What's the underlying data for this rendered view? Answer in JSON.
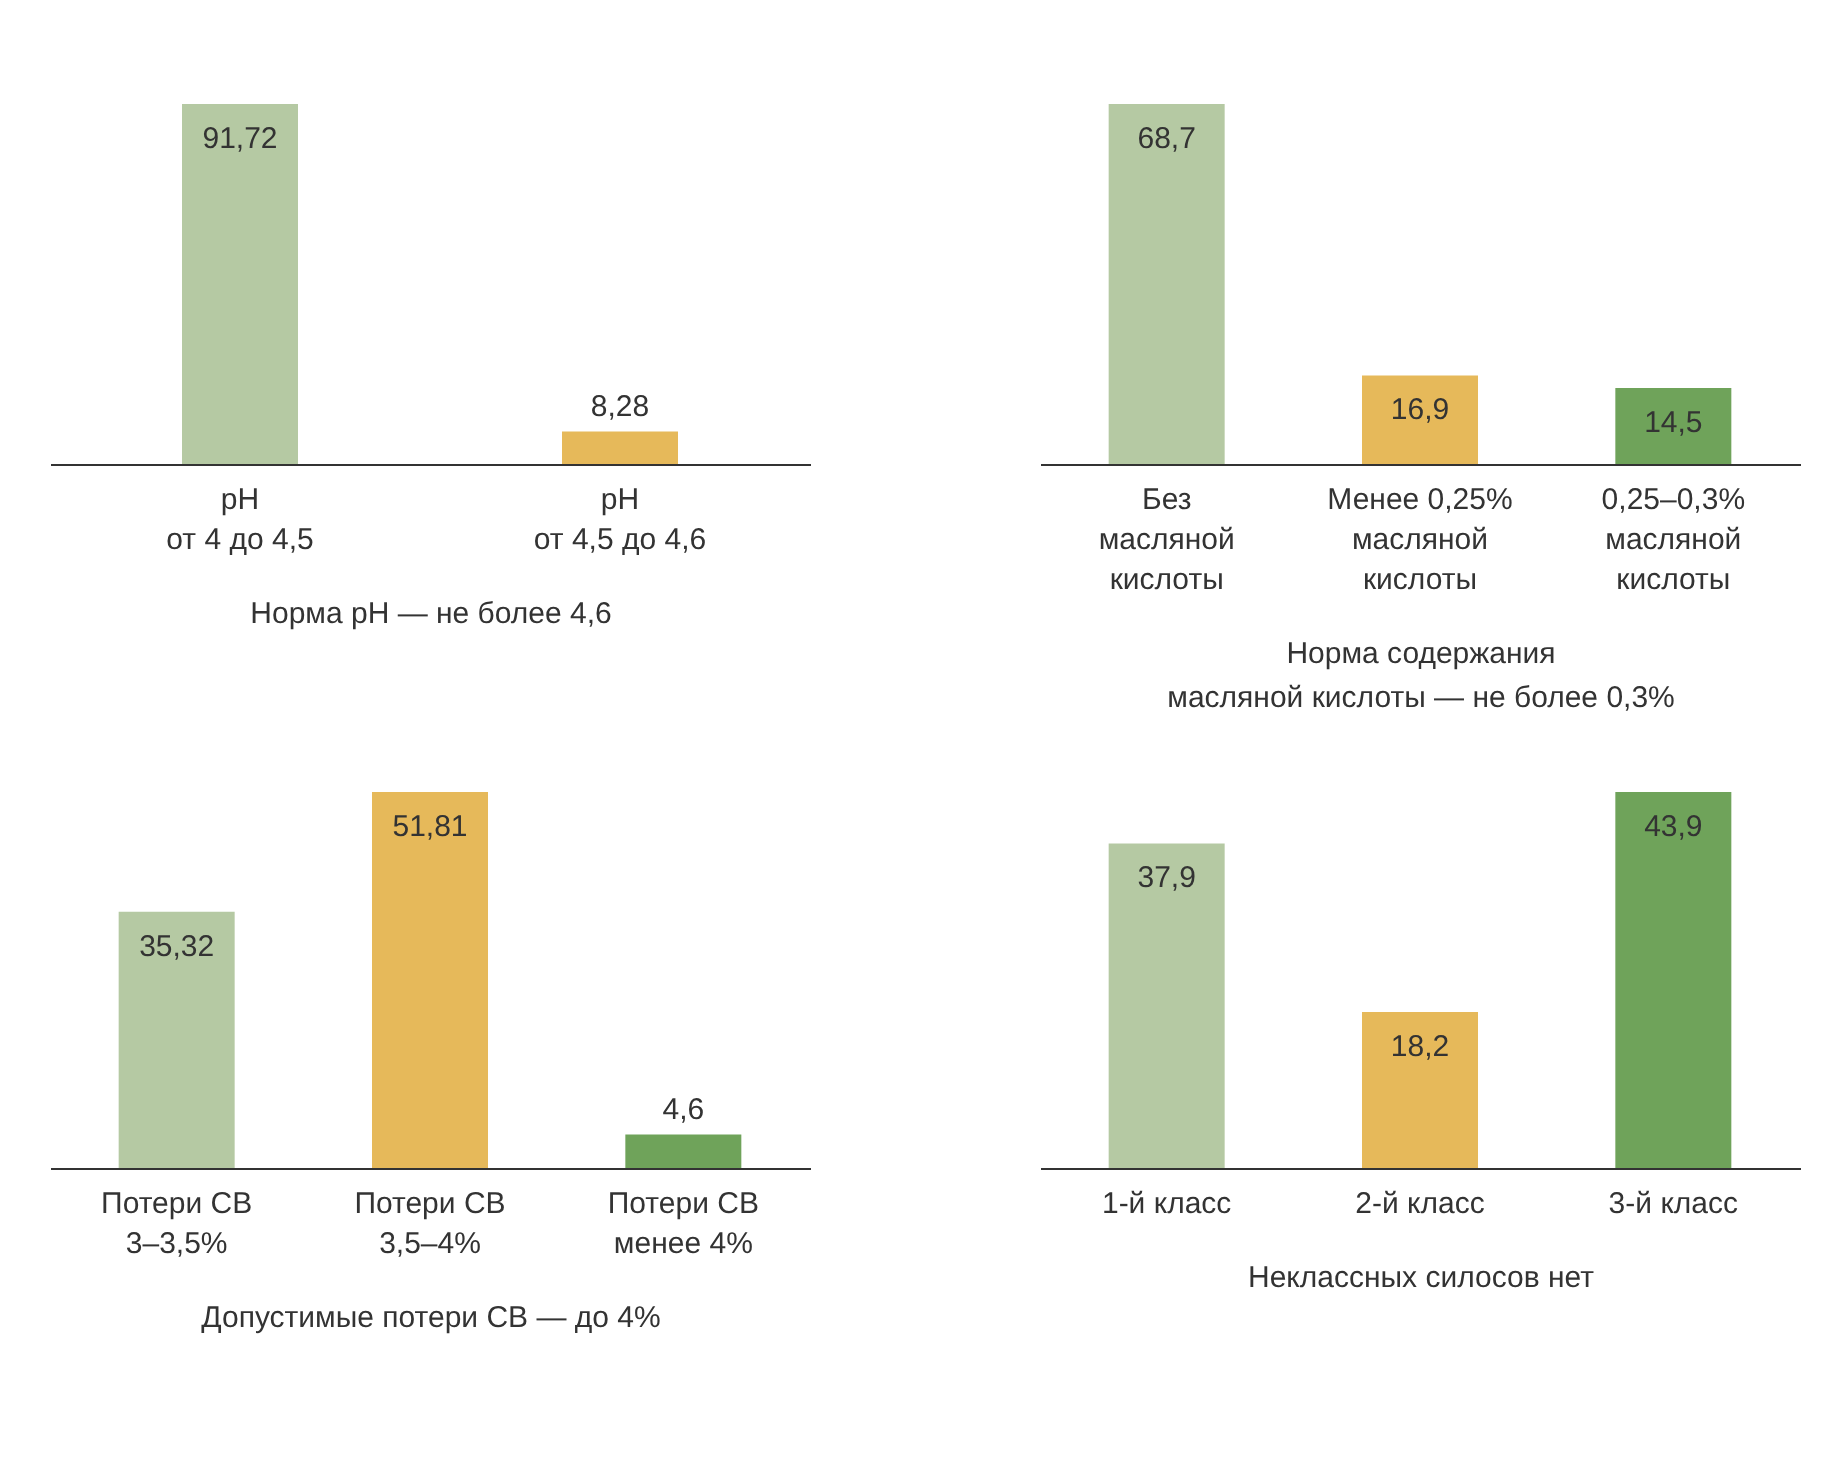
{
  "chart_data": [
    {
      "type": "bar",
      "categories": [
        "pH\nот 4 до 4,5",
        "pH\nот 4,5 до 4,6"
      ],
      "values": [
        91.72,
        8.28
      ],
      "value_labels": [
        "91,72",
        "8,28"
      ],
      "colors": [
        "#b5c9a3",
        "#e6b95a"
      ],
      "xlabel": "Норма pH — не более 4,6"
    },
    {
      "type": "bar",
      "categories": [
        "Без\nмасляной\nкислоты",
        "Менее 0,25%\nмасляной\nкислоты",
        "0,25–0,3%\nмасляной\nкислоты"
      ],
      "values": [
        68.7,
        16.9,
        14.5
      ],
      "value_labels": [
        "68,7",
        "16,9",
        "14,5"
      ],
      "colors": [
        "#b5c9a3",
        "#e6b95a",
        "#6fa35a"
      ],
      "xlabel": "Норма содержания\nмасляной кислоты — не более 0,3%"
    },
    {
      "type": "bar",
      "categories": [
        "Потери СВ\n3–3,5%",
        "Потери СВ\n3,5–4%",
        "Потери СВ\nменее 4%"
      ],
      "values": [
        35.32,
        51.81,
        4.6
      ],
      "value_labels": [
        "35,32",
        "51,81",
        "4,6"
      ],
      "colors": [
        "#b5c9a3",
        "#e6b95a",
        "#6fa35a"
      ],
      "xlabel": "Допустимые потери СВ — до 4%"
    },
    {
      "type": "bar",
      "categories": [
        "1-й класс",
        "2-й класс",
        "3-й класс"
      ],
      "values": [
        37.9,
        18.2,
        43.9
      ],
      "value_labels": [
        "37,9",
        "18,2",
        "43,9"
      ],
      "colors": [
        "#b5c9a3",
        "#e6b95a",
        "#6fa35a"
      ],
      "xlabel": "Неклассных силосов нет"
    }
  ]
}
